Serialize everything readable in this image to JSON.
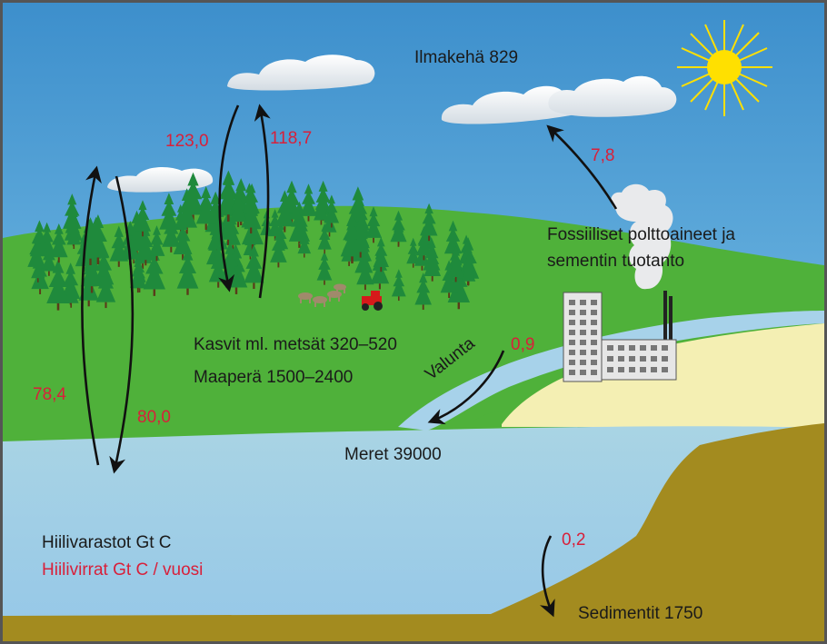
{
  "stocks": {
    "atmosphere": "Ilmakehä 829",
    "fossil_line1": "Fossiiliset polttoaineet ja",
    "fossil_line2": "sementin tuotanto",
    "plants": "Kasvit ml. metsät 320–520",
    "soil": "Maaperä 1500–2400",
    "oceans": "Meret  39000",
    "sediments": "Sedimentit 1750"
  },
  "flows": {
    "plants_to_air": "118,7",
    "air_to_plants": "123,0",
    "ocean_to_air": "78,4",
    "air_to_ocean": "80,0",
    "fossil_emissions": "7,8",
    "runoff": "0,9",
    "runoff_label": "Valunta",
    "to_sediment": "0,2"
  },
  "legend": {
    "stocks_title": "Hiilivarastot Gt C",
    "flows_title": "Hiilivirrat Gt C / vuosi"
  },
  "colors": {
    "sky": "#66b0de",
    "grass": "#4fb13a",
    "forest": "#1f8a3c",
    "ocean": "#9fcde8",
    "sand": "#f4efb3",
    "sediment": "#a38b1f",
    "sun": "#ffe000",
    "flow_label": "#d8203a",
    "arrow": "#111111"
  }
}
